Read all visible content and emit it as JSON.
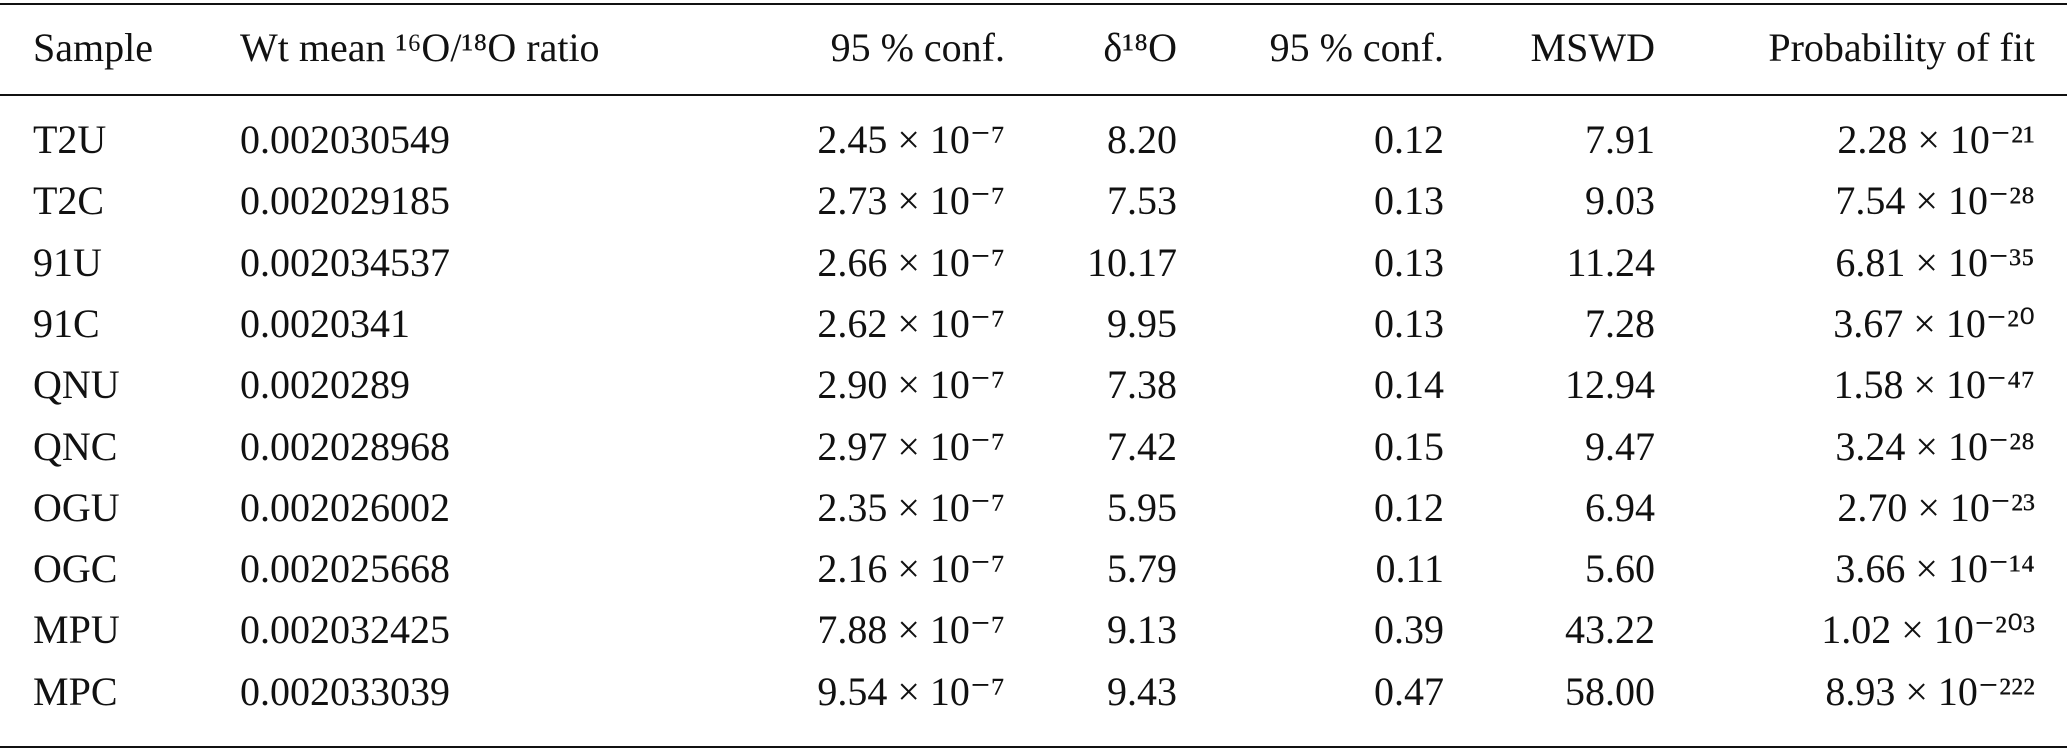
{
  "table": {
    "header": [
      "Sample",
      "Wt mean ¹⁶O/¹⁸O ratio",
      "95 % conf.",
      "δ¹⁸O",
      "95 % conf.",
      "MSWD",
      "Probability of fit"
    ],
    "rows": [
      [
        "T2U",
        "0.002030549",
        "2.45 × 10⁻⁷",
        "8.20",
        "0.12",
        "7.91",
        "2.28 × 10⁻²¹"
      ],
      [
        "T2C",
        "0.002029185",
        "2.73 × 10⁻⁷",
        "7.53",
        "0.13",
        "9.03",
        "7.54 × 10⁻²⁸"
      ],
      [
        "91U",
        "0.002034537",
        "2.66 × 10⁻⁷",
        "10.17",
        "0.13",
        "11.24",
        "6.81 × 10⁻³⁵"
      ],
      [
        "91C",
        "0.0020341",
        "2.62 × 10⁻⁷",
        "9.95",
        "0.13",
        "7.28",
        "3.67 × 10⁻²⁰"
      ],
      [
        "QNU",
        "0.0020289",
        "2.90 × 10⁻⁷",
        "7.38",
        "0.14",
        "12.94",
        "1.58 × 10⁻⁴⁷"
      ],
      [
        "QNC",
        "0.002028968",
        "2.97 × 10⁻⁷",
        "7.42",
        "0.15",
        "9.47",
        "3.24 × 10⁻²⁸"
      ],
      [
        "OGU",
        "0.002026002",
        "2.35 × 10⁻⁷",
        "5.95",
        "0.12",
        "6.94",
        "2.70 × 10⁻²³"
      ],
      [
        "OGC",
        "0.002025668",
        "2.16 × 10⁻⁷",
        "5.79",
        "0.11",
        "5.60",
        "3.66 × 10⁻¹⁴"
      ],
      [
        "MPU",
        "0.002032425",
        "7.88 × 10⁻⁷",
        "9.13",
        "0.39",
        "43.22",
        "1.02 × 10⁻²⁰³"
      ],
      [
        "MPC",
        "0.002033039",
        "9.54 × 10⁻⁷",
        "9.43",
        "0.47",
        "58.00",
        "8.93 × 10⁻²²²"
      ]
    ]
  }
}
